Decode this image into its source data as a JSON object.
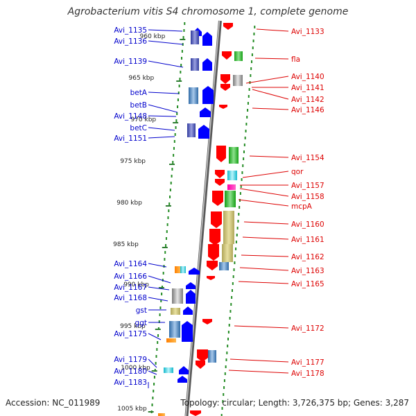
{
  "title": "Agrobacterium vitis S4 chromosome 1, complete genome",
  "footer": {
    "accession": "Accession: NC_011989",
    "topology": "Topology: circular; Length: 3,726,375 bp; Genes: 3,287"
  },
  "ticks": [
    "960 kbp",
    "965 kbp",
    "970 kbp",
    "975 kbp",
    "980 kbp",
    "985 kbp",
    "990 kbp",
    "995 kbp",
    "1000 kbp",
    "1005 kbp"
  ],
  "left_labels": [
    "Avi_1135",
    "Avi_1136",
    "Avi_1139",
    "betA",
    "betB",
    "Avi_1148",
    "betC",
    "Avi_1151",
    "Avi_1164",
    "Avi_1166",
    "Avi_1167",
    "Avi_1168",
    "gst",
    "ggt",
    "Avi_1175",
    "Avi_1179",
    "Avi_1180",
    "Avi_1183"
  ],
  "right_labels": [
    "Avi_1133",
    "fla",
    "Avi_1140",
    "Avi_1141",
    "Avi_1142",
    "Avi_1146",
    "Avi_1154",
    "qor",
    "Avi_1157",
    "Avi_1158",
    "mcpA",
    "Avi_1160",
    "Avi_1161",
    "Avi_1162",
    "Avi_1163",
    "Avi_1165",
    "Avi_1172",
    "Avi_1177",
    "Avi_1178"
  ],
  "colors": {
    "forward_gene": "#ff0000",
    "reverse_gene": "#0000ff",
    "left_label_text": "#0000cc",
    "right_label_text": "#dd0000",
    "dotted_track": "#228b22",
    "backbone": "#888888"
  }
}
